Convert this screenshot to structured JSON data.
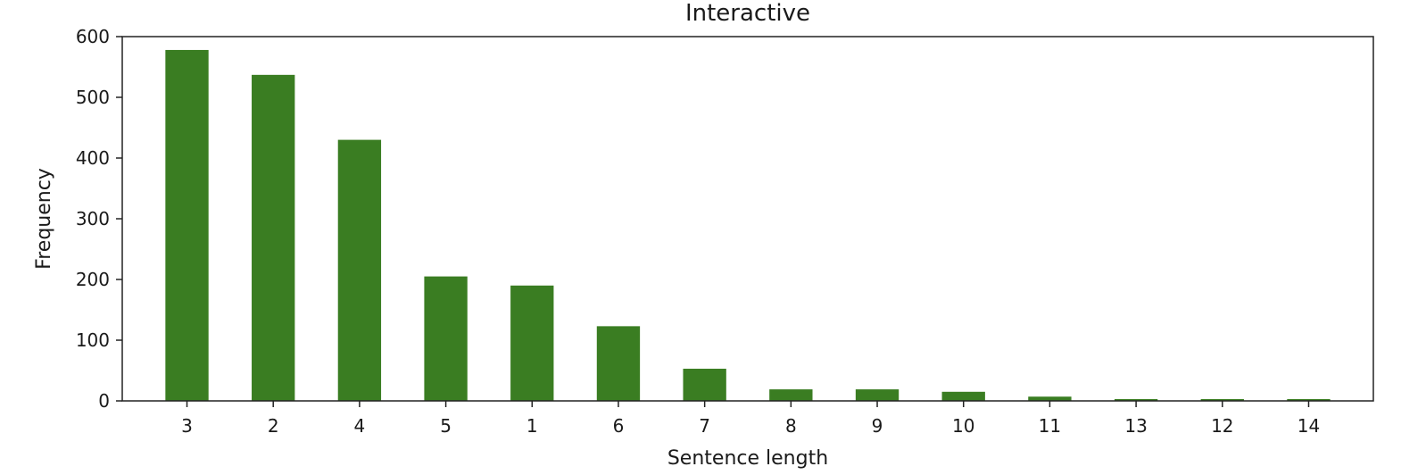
{
  "chart_data": {
    "type": "bar",
    "title": "Interactive",
    "xlabel": "Sentence length",
    "ylabel": "Frequency",
    "categories": [
      "3",
      "2",
      "4",
      "5",
      "1",
      "6",
      "7",
      "8",
      "9",
      "10",
      "11",
      "13",
      "12",
      "14"
    ],
    "values": [
      578,
      537,
      430,
      205,
      190,
      123,
      53,
      19,
      19,
      15,
      7,
      3,
      3,
      3
    ],
    "ylim": [
      0,
      600
    ],
    "yticks": [
      "0",
      "100",
      "200",
      "300",
      "400",
      "500",
      "600"
    ],
    "grid": false,
    "bar_color": "#3a7d22"
  }
}
